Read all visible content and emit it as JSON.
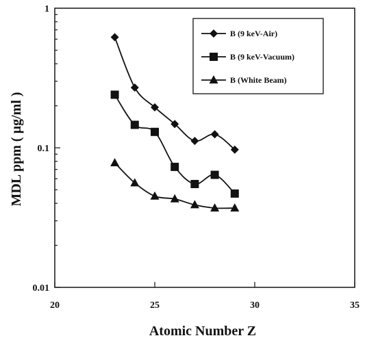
{
  "chart_data": {
    "type": "line",
    "xlabel": "Atomic Number Z",
    "ylabel": "MDL ppm ( µg/ml )",
    "xlim": [
      20,
      35
    ],
    "ylim": [
      0.01,
      1
    ],
    "yscale": "log",
    "x_ticks": [
      {
        "value": 20,
        "label": "20"
      },
      {
        "value": 25,
        "label": "25"
      },
      {
        "value": 30,
        "label": "30"
      },
      {
        "value": 35,
        "label": "35"
      }
    ],
    "y_ticks": [
      {
        "value": 0.01,
        "label": "0.01"
      },
      {
        "value": 0.1,
        "label": "0.1"
      },
      {
        "value": 1,
        "label": "1"
      }
    ],
    "grid": false,
    "legend_position": "top-right",
    "series": [
      {
        "name": "B (9 keV-Air)",
        "marker": "diamond",
        "color": "#111111",
        "x": [
          23,
          24,
          25,
          26,
          27,
          28,
          29
        ],
        "y": [
          0.62,
          0.27,
          0.195,
          0.148,
          0.112,
          0.125,
          0.097
        ]
      },
      {
        "name": "B (9 keV-Vacuum)",
        "marker": "square",
        "color": "#111111",
        "x": [
          23,
          24,
          25,
          26,
          27,
          28,
          29
        ],
        "y": [
          0.24,
          0.146,
          0.13,
          0.073,
          0.055,
          0.064,
          0.047
        ]
      },
      {
        "name": "B (White Beam)",
        "marker": "triangle",
        "color": "#111111",
        "x": [
          23,
          24,
          25,
          26,
          27,
          28,
          29
        ],
        "y": [
          0.078,
          0.056,
          0.045,
          0.043,
          0.039,
          0.037,
          0.037
        ]
      }
    ]
  }
}
